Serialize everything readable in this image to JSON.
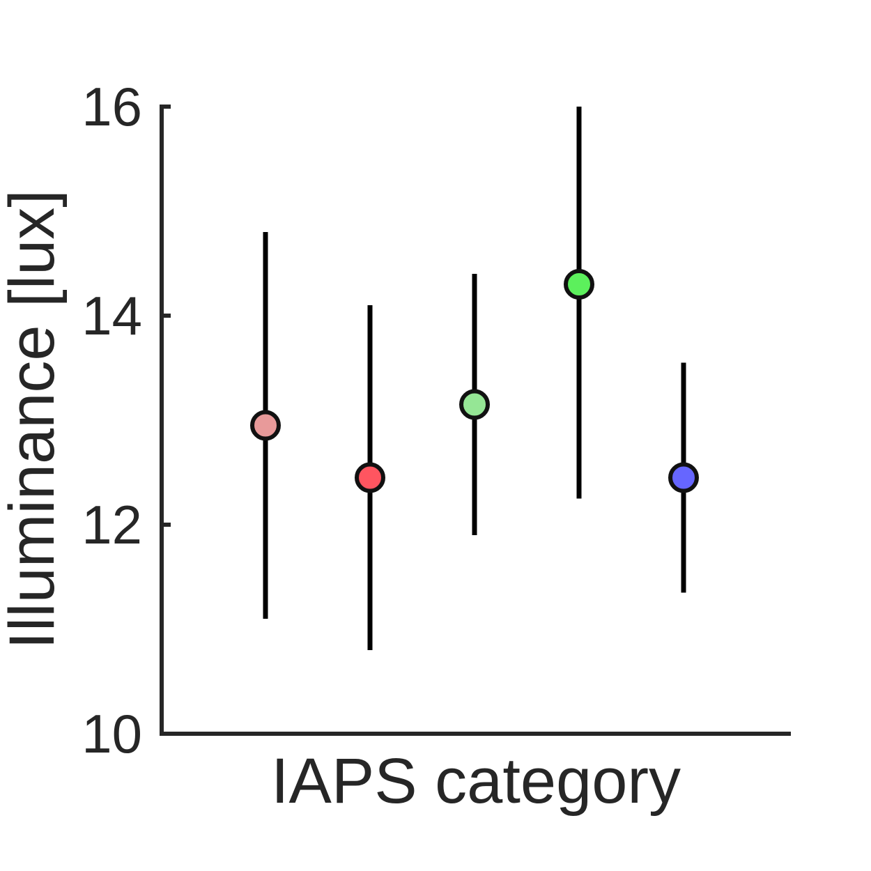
{
  "chart_data": {
    "type": "scatter",
    "title": "",
    "xlabel": "IAPS category",
    "ylabel": "Illuminance [lux]",
    "ylim": [
      10,
      16
    ],
    "yticks": [
      10,
      12,
      14,
      16
    ],
    "grid": false,
    "legend": "none",
    "x_ticks_shown": false,
    "error_bars": true,
    "points": [
      {
        "x": 1,
        "y": 12.95,
        "err_low": 11.1,
        "err_high": 14.8,
        "color": "#e89a9a"
      },
      {
        "x": 2,
        "y": 12.45,
        "err_low": 10.8,
        "err_high": 14.1,
        "color": "#ff5560"
      },
      {
        "x": 3,
        "y": 13.15,
        "err_low": 11.9,
        "err_high": 14.4,
        "color": "#95e695"
      },
      {
        "x": 4,
        "y": 14.3,
        "err_low": 12.25,
        "err_high": 16.0,
        "color": "#5cf05c"
      },
      {
        "x": 5,
        "y": 12.45,
        "err_low": 11.35,
        "err_high": 13.55,
        "color": "#6666ff"
      }
    ]
  }
}
